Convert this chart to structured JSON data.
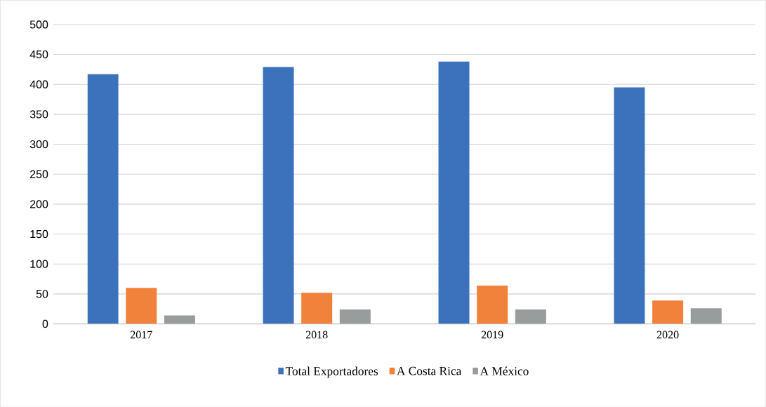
{
  "chart_data": {
    "type": "bar",
    "categories": [
      "2017",
      "2018",
      "2019",
      "2020"
    ],
    "series": [
      {
        "name": "Total Exportadores",
        "color": "#3c72bc",
        "values": [
          417,
          429,
          438,
          395
        ]
      },
      {
        "name": "A Costa Rica",
        "color": "#f0823c",
        "values": [
          60,
          52,
          64,
          39
        ]
      },
      {
        "name": "A México",
        "color": "#999c9c",
        "values": [
          14,
          24,
          24,
          26
        ]
      }
    ],
    "ylim": [
      0,
      500
    ],
    "yticks": [
      0,
      50,
      100,
      150,
      200,
      250,
      300,
      350,
      400,
      450,
      500
    ],
    "grid": "y",
    "legend": "bottom"
  }
}
